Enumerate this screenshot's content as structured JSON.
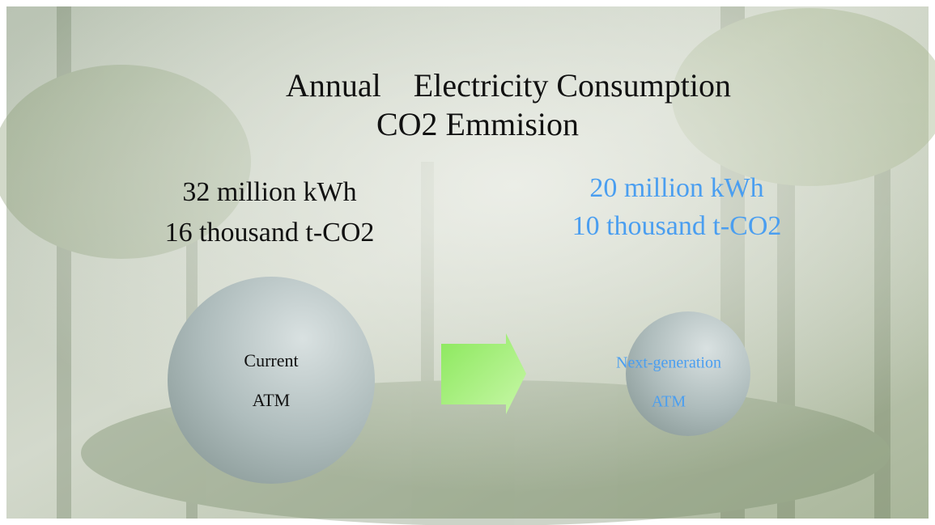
{
  "slide": {
    "title": {
      "line1": "Annual　Electricity Consumption",
      "line2": "CO2 Emmision"
    },
    "current": {
      "energy": "32 million kWh",
      "emission": "16 thousand t-CO2",
      "label1": "Current",
      "label2": "ATM"
    },
    "next": {
      "energy": "20 million kWh",
      "emission": "10 thousand t-CO2",
      "label1": "Next-generation",
      "label2": "ATM"
    }
  }
}
